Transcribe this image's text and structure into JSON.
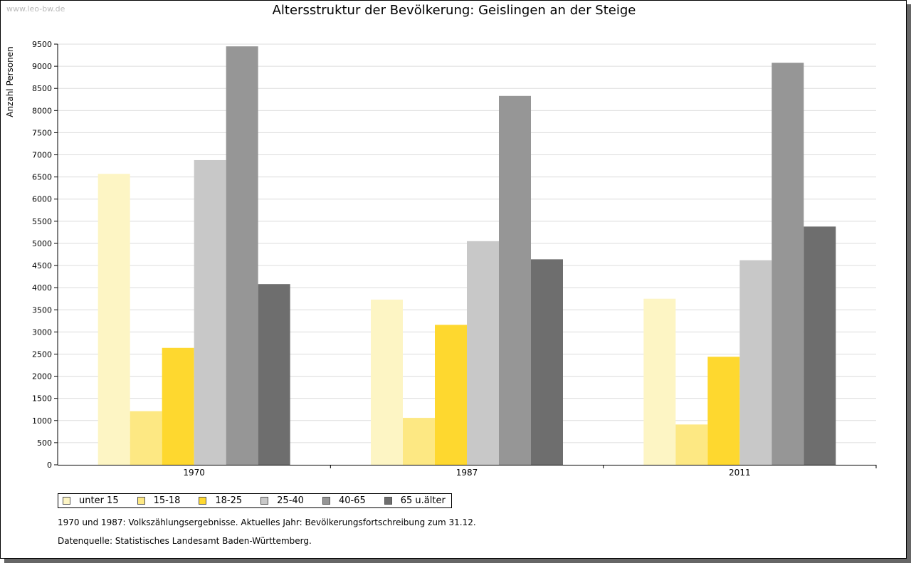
{
  "watermark": "www.leo-bw.de",
  "footnote": "1970 und 1987: Volkszählungsergebnisse. Aktuelles Jahr: Bevölkerungsfortschreibung zum 31.12.",
  "source": "Datenquelle: Statistisches Landesamt Baden-Württemberg.",
  "chart_data": {
    "type": "bar",
    "title": "Altersstruktur der Bevölkerung: Geislingen an der Steige",
    "xlabel": "",
    "ylabel": "Anzahl Personen",
    "ylim": [
      0,
      9500
    ],
    "yticks": [
      0,
      500,
      1000,
      1500,
      2000,
      2500,
      3000,
      3500,
      4000,
      4500,
      5000,
      5500,
      6000,
      6500,
      7000,
      7500,
      8000,
      8500,
      9000,
      9500
    ],
    "grid": true,
    "legend": "bottom-left",
    "categories": [
      "1970",
      "1987",
      "2011"
    ],
    "series": [
      {
        "name": "unter 15",
        "color": "#fdf5c4",
        "values": [
          6570,
          3730,
          3750
        ]
      },
      {
        "name": "15-18",
        "color": "#fde883",
        "values": [
          1210,
          1060,
          910
        ]
      },
      {
        "name": "18-25",
        "color": "#fed82f",
        "values": [
          2640,
          3160,
          2440
        ]
      },
      {
        "name": "25-40",
        "color": "#c8c8c8",
        "values": [
          6880,
          5050,
          4620
        ]
      },
      {
        "name": "40-65",
        "color": "#969696",
        "values": [
          9450,
          8330,
          9080
        ]
      },
      {
        "name": "65 u.älter",
        "color": "#6e6e6e",
        "values": [
          4080,
          4640,
          5380
        ]
      }
    ]
  }
}
